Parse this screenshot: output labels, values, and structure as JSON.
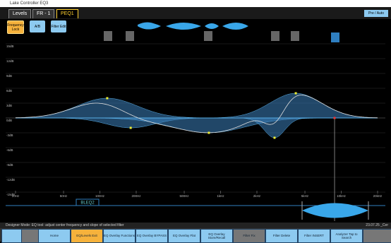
{
  "window": {
    "title": "Lake Controller EQ3"
  },
  "tabs": [
    "Levels",
    "FR - 1",
    "PEQ1"
  ],
  "toolbar": {
    "buttons": [
      "Frequency Lock",
      "A/B",
      "Filter Edit"
    ],
    "mode": "Pre / Auto"
  },
  "eq": {
    "yticks": [
      {
        "value": 15,
        "label": "15dB"
      },
      {
        "value": 12,
        "label": "12dB"
      },
      {
        "value": 9,
        "label": "9dB"
      },
      {
        "value": 6,
        "label": "6dB"
      },
      {
        "value": 3,
        "label": "3dB"
      },
      {
        "value": 0,
        "label": "0dB"
      },
      {
        "value": -3,
        "label": "-3dB"
      },
      {
        "value": -6,
        "label": "-6dB"
      },
      {
        "value": -9,
        "label": "-9dB"
      },
      {
        "value": -12,
        "label": "-12dB"
      },
      {
        "value": -15,
        "label": "-15dB"
      }
    ],
    "ylim": [
      -15,
      15
    ],
    "xlim": [
      20,
      20000
    ],
    "xticks": [
      {
        "value": 20,
        "label": "20Hz"
      },
      {
        "value": 50,
        "label": "50Hz"
      },
      {
        "value": 100,
        "label": "100Hz"
      },
      {
        "value": 200,
        "label": "200Hz"
      },
      {
        "value": 500,
        "label": "500Hz"
      },
      {
        "value": 1000,
        "label": "1kHz"
      },
      {
        "value": 2000,
        "label": "2kHz"
      },
      {
        "value": 5000,
        "label": "5kHz"
      },
      {
        "value": 10000,
        "label": "10kHz"
      },
      {
        "value": 20000,
        "label": "20kHz"
      }
    ],
    "filters": [
      {
        "freq": 115,
        "gain": 4,
        "q": 1.2
      },
      {
        "freq": 180,
        "gain": -2,
        "q": 1.5
      },
      {
        "freq": 800,
        "gain": -3,
        "q": 1.0
      },
      {
        "freq": 2800,
        "gain": -4,
        "q": 3.5
      },
      {
        "freq": 4200,
        "gain": 5,
        "q": 1.4
      },
      {
        "freq": 8800,
        "gain": 0,
        "q": 1.0
      }
    ]
  },
  "lower_tab": "BLEQ2",
  "status": {
    "message": "Designer Mode: EQ tool: adjust center frequency and slope of selected filter",
    "date": "23.07.25 _Cer"
  },
  "bottom_buttons": [
    "Home",
    "EQ/Levels Exit",
    "EQ Overlay Functions",
    "EQ Overlay BYPASS",
    "EQ Overlay Flat",
    "EQ Overlay Store/Recall",
    "Filter Fix",
    "Filter Delete",
    "Filter INSERT",
    "Analyzer Tap to Search"
  ]
}
